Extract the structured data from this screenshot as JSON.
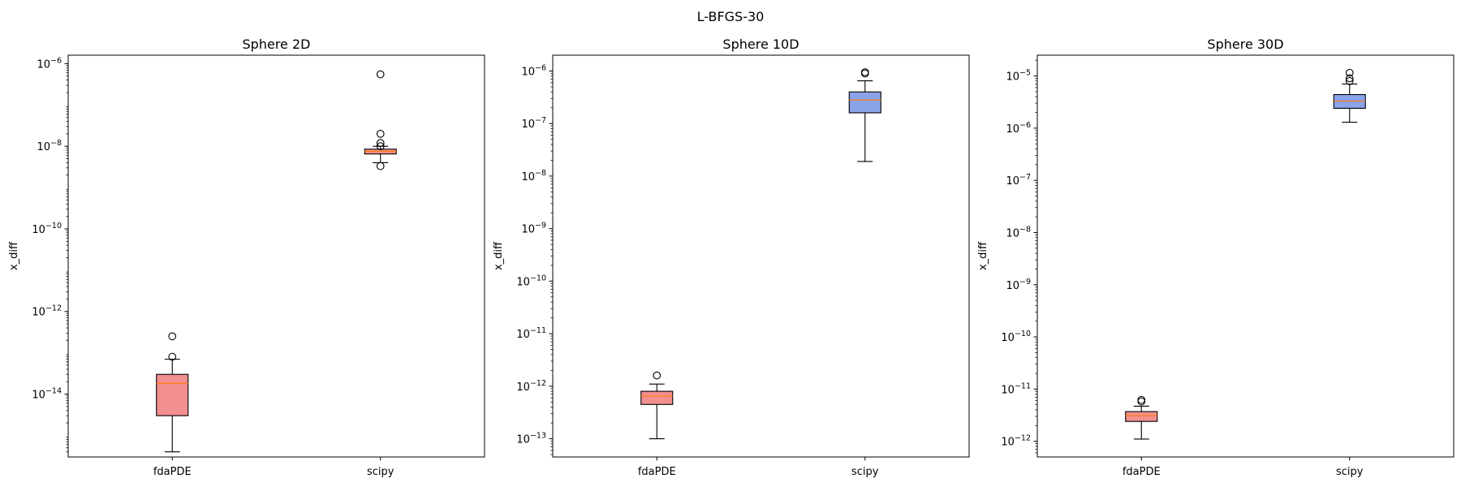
{
  "figure": {
    "title": "L-BFGS-30"
  },
  "chart_data": [
    {
      "type": "box",
      "title": "Sphere 2D",
      "ylabel": "x_diff",
      "yscale": "log",
      "ylim": [
        3e-16,
        1.6e-06
      ],
      "yticks": [
        -14,
        -12,
        -10,
        -8,
        -6
      ],
      "categories": [
        "fdaPDE",
        "scipy"
      ],
      "boxes": [
        {
          "name": "fdaPDE",
          "whisker_low": 4e-16,
          "q1": 3e-15,
          "median": 1.8e-14,
          "q3": 3e-14,
          "whisker_high": 7e-14,
          "fliers": [
            8e-14,
            2.5e-13
          ],
          "color": "#f08080"
        },
        {
          "name": "scipy",
          "whisker_low": 4e-09,
          "q1": 6.5e-09,
          "median": 7.5e-09,
          "q3": 8.5e-09,
          "whisker_high": 1e-08,
          "fliers": [
            3.3e-09,
            1e-08,
            1.2e-08,
            2e-08,
            5.5e-07
          ],
          "color": "#f08080"
        }
      ]
    },
    {
      "type": "box",
      "title": "Sphere 10D",
      "ylabel": "x_diff",
      "yscale": "log",
      "ylim": [
        4.5e-14,
        2e-06
      ],
      "yticks": [
        -13,
        -12,
        -11,
        -10,
        -9,
        -8,
        -7,
        -6
      ],
      "categories": [
        "fdaPDE",
        "scipy"
      ],
      "boxes": [
        {
          "name": "fdaPDE",
          "whisker_low": 1e-13,
          "q1": 4.5e-13,
          "median": 6.5e-13,
          "q3": 8e-13,
          "whisker_high": 1.1e-12,
          "fliers": [
            1.6e-12
          ],
          "color": "#f08080"
        },
        {
          "name": "scipy",
          "whisker_low": 1.9e-08,
          "q1": 1.6e-07,
          "median": 2.8e-07,
          "q3": 4e-07,
          "whisker_high": 6.5e-07,
          "fliers": [
            9e-07,
            9.5e-07
          ],
          "color": "#7b96e6"
        }
      ]
    },
    {
      "type": "box",
      "title": "Sphere 30D",
      "ylabel": "x_diff",
      "yscale": "log",
      "ylim": [
        5e-13,
        2.5e-05
      ],
      "yticks": [
        -12,
        -11,
        -10,
        -9,
        -8,
        -7,
        -6,
        -5
      ],
      "categories": [
        "fdaPDE",
        "scipy"
      ],
      "boxes": [
        {
          "name": "fdaPDE",
          "whisker_low": 1.1e-12,
          "q1": 2.4e-12,
          "median": 3.1e-12,
          "q3": 3.7e-12,
          "whisker_high": 4.7e-12,
          "fliers": [
            5.8e-12,
            6.2e-12
          ],
          "color": "#f08080"
        },
        {
          "name": "scipy",
          "whisker_low": 1.3e-06,
          "q1": 2.4e-06,
          "median": 3.3e-06,
          "q3": 4.4e-06,
          "whisker_high": 7e-06,
          "fliers": [
            8e-06,
            9e-06,
            1.15e-05
          ],
          "color": "#7b96e6"
        }
      ]
    }
  ]
}
